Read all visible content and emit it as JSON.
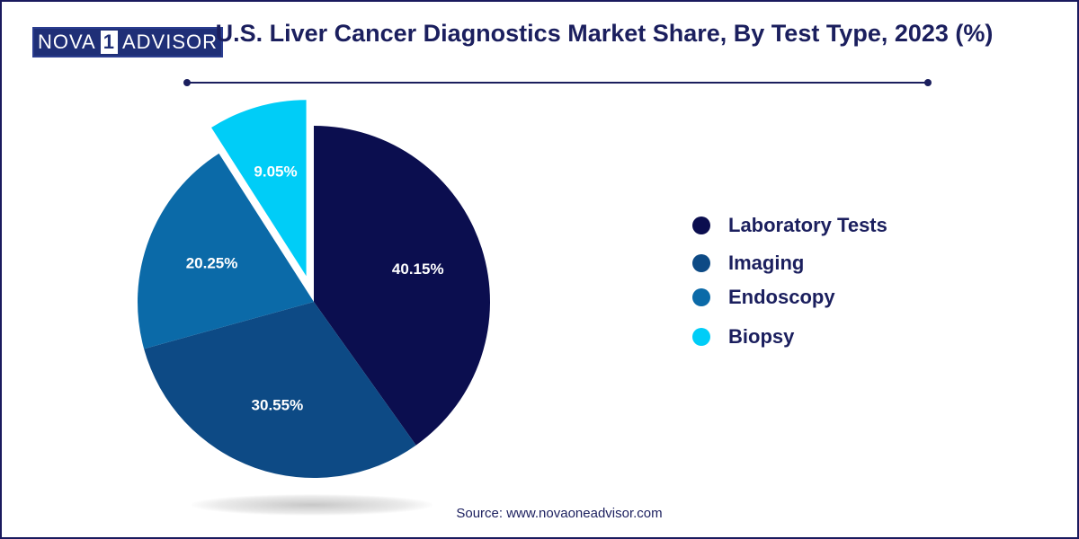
{
  "brand": {
    "logo_left": "NOVA",
    "logo_mid": "1",
    "logo_right": "ADVISOR"
  },
  "chart_data": {
    "type": "pie",
    "title": "U.S. Liver Cancer Diagnostics Market Share, By Test Type, 2023 (%)",
    "categories": [
      "Laboratory Tests",
      "Imaging",
      "Endoscopy",
      "Biopsy"
    ],
    "values": [
      40.15,
      30.55,
      20.25,
      9.05
    ],
    "labels": [
      "40.15%",
      "30.55%",
      "20.25%",
      "9.05%"
    ],
    "colors": [
      "#0b0e4f",
      "#0d4a85",
      "#0b6aa8",
      "#00cdf7"
    ],
    "exploded": [
      "Biopsy"
    ],
    "legend_position": "right",
    "source": "Source: www.novaoneadvisor.com"
  }
}
